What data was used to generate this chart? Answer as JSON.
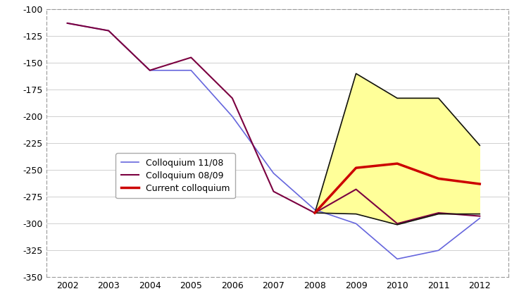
{
  "years_blue": [
    2002,
    2003,
    2004,
    2005,
    2006,
    2007,
    2008,
    2009,
    2010,
    2011,
    2012
  ],
  "values_blue": [
    -113,
    -120,
    -157,
    -157,
    -200,
    -253,
    -287,
    -300,
    -333,
    -325,
    -295
  ],
  "years_purple": [
    2002,
    2003,
    2004,
    2005,
    2006,
    2007,
    2008,
    2009,
    2010,
    2011,
    2012
  ],
  "values_purple": [
    -113,
    -120,
    -157,
    -145,
    -183,
    -270,
    -290,
    -268,
    -300,
    -290,
    -293
  ],
  "years_red": [
    2008,
    2009,
    2010,
    2011,
    2012
  ],
  "values_red": [
    -290,
    -248,
    -244,
    -258,
    -263
  ],
  "years_black_upper": [
    2008,
    2009,
    2010,
    2011,
    2012
  ],
  "values_black_upper": [
    -290,
    -160,
    -183,
    -183,
    -227
  ],
  "years_black_lower": [
    2008,
    2009,
    2010,
    2011,
    2012
  ],
  "values_black_lower": [
    -290,
    -291,
    -301,
    -291,
    -291
  ],
  "ylim": [
    -350,
    -100
  ],
  "xlim": [
    2001.5,
    2012.7
  ],
  "yticks": [
    -350,
    -325,
    -300,
    -275,
    -250,
    -225,
    -200,
    -175,
    -150,
    -125,
    -100
  ],
  "xticks": [
    2002,
    2003,
    2004,
    2005,
    2006,
    2007,
    2008,
    2009,
    2010,
    2011,
    2012
  ],
  "color_blue": "#6666dd",
  "color_purple": "#7b0040",
  "color_red": "#cc0000",
  "color_black": "#111111",
  "fill_color": "#ffff99",
  "background_color": "#ffffff",
  "legend_labels": [
    "Colloquium 11/08",
    "Colloquium 08/09",
    "Current colloquium"
  ]
}
